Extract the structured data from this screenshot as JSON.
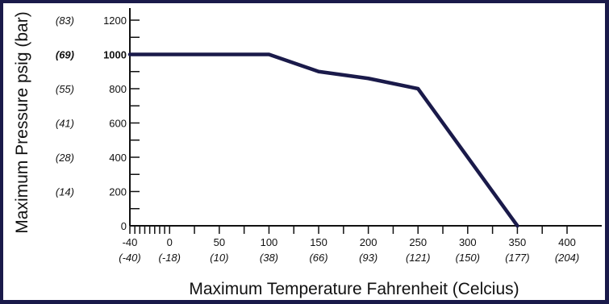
{
  "colors": {
    "frame": "#1a1a4a",
    "line": "#1a1a4a",
    "text": "#111111"
  },
  "chart_data": {
    "type": "line",
    "title": "",
    "xlabel": "Maximum Temperature Fahrenheit (Celcius)",
    "ylabel": "Maximum Pressure psig (bar)",
    "xlim": [
      -40,
      420
    ],
    "ylim": [
      0,
      1300
    ],
    "grid": false,
    "series": [
      {
        "x": [
          -40,
          75,
          100,
          150,
          200,
          250,
          350
        ],
        "y": [
          1000,
          1000,
          1000,
          900,
          860,
          800,
          0
        ]
      }
    ],
    "x_ticks": [
      {
        "value": -40,
        "label": "-40",
        "sub": "(-40)"
      },
      {
        "value": 0,
        "label": "0",
        "sub": "(-18)"
      },
      {
        "value": 50,
        "label": "50",
        "sub": "(10)"
      },
      {
        "value": 100,
        "label": "100",
        "sub": "(38)"
      },
      {
        "value": 150,
        "label": "150",
        "sub": "(66)"
      },
      {
        "value": 200,
        "label": "200",
        "sub": "(93)"
      },
      {
        "value": 250,
        "label": "250",
        "sub": "(121)"
      },
      {
        "value": 300,
        "label": "300",
        "sub": "(150)"
      },
      {
        "value": 350,
        "label": "350",
        "sub": "(177)"
      },
      {
        "value": 400,
        "label": "400",
        "sub": "(204)"
      }
    ],
    "x_minor_ticks": [
      -35,
      -30,
      -25,
      -20,
      -15,
      -10,
      -5,
      25,
      75,
      125,
      175,
      225,
      275,
      325,
      375
    ],
    "y_ticks": [
      {
        "value": 0,
        "label": "0",
        "sub": ""
      },
      {
        "value": 200,
        "label": "200",
        "sub": "(14)"
      },
      {
        "value": 400,
        "label": "400",
        "sub": "(28)"
      },
      {
        "value": 600,
        "label": "600",
        "sub": "(41)"
      },
      {
        "value": 800,
        "label": "800",
        "sub": "(55)"
      },
      {
        "value": 1000,
        "label": "1000",
        "sub": "(69)",
        "bold": true
      },
      {
        "value": 1200,
        "label": "1200",
        "sub": "(83)"
      }
    ],
    "y_minor_ticks": [
      100,
      300,
      500,
      700,
      900,
      1100
    ]
  }
}
